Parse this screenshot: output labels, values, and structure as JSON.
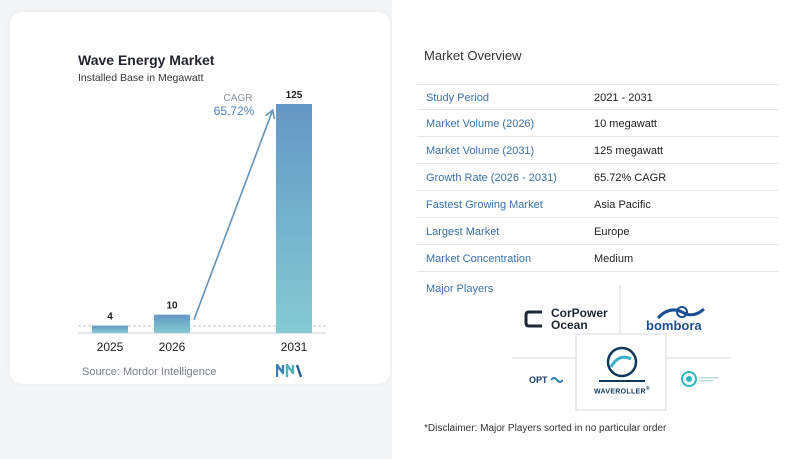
{
  "chart_data": {
    "type": "bar",
    "title": "Wave Energy Market",
    "subtitle": "Installed Base in Megawatt",
    "categories": [
      "2025",
      "2026",
      "2031"
    ],
    "values": [
      4,
      10,
      125
    ],
    "value_labels": [
      "4",
      "10",
      "125"
    ],
    "ylim": [
      0,
      125
    ],
    "annotation": {
      "label": "CAGR",
      "value": "65.72%"
    },
    "colors": {
      "bars_top": "#6497c4",
      "bars_bottom": "#84cbd2",
      "arrow": "#5f93bd"
    },
    "grid": false,
    "legend": "none"
  },
  "source": "Source: Mordor Intelligence",
  "overview": {
    "title": "Market Overview",
    "rows": [
      {
        "label": "Study Period",
        "value": "2021 - 2031"
      },
      {
        "label": "Market Volume (2026)",
        "value": "10 megawatt"
      },
      {
        "label": "Market Volume (2031)",
        "value": "125 megawatt"
      },
      {
        "label": "Growth Rate (2026 - 2031)",
        "value": "65.72% CAGR"
      },
      {
        "label": "Fastest Growing Market",
        "value": "Asia Pacific"
      },
      {
        "label": "Largest Market",
        "value": "Europe"
      },
      {
        "label": "Market Concentration",
        "value": "Medium"
      }
    ]
  },
  "players": {
    "label": "Major Players",
    "logos": {
      "corpower_line1": "CorPower",
      "corpower_line2": "Ocean",
      "bombora": "bombora",
      "opt": "OPT",
      "waveroller": "WAVEROLLER",
      "reg_mark": "®"
    }
  },
  "disclaimer": "*Disclaimer: Major Players sorted in no particular order"
}
